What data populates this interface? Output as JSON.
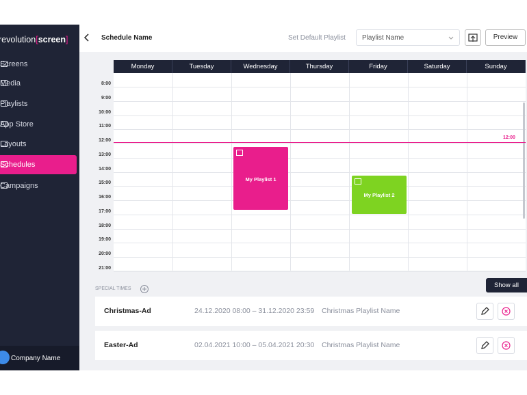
{
  "sidebar": {
    "logo": {
      "brand": "revolution",
      "accent": "screen"
    },
    "nav": [
      "Screens",
      "Media",
      "Playlists",
      "App Store",
      "Layouts",
      "Schedules",
      "Campaigns"
    ],
    "user": "Company Name"
  },
  "header": {
    "title": "Schedule Name",
    "default_playlist_label": "Set Default Playlist",
    "select": "Playlist Name",
    "preview": "Preview"
  },
  "calendar": {
    "days": [
      "Monday",
      "Tuesday",
      "Wednesday",
      "Thursday",
      "Friday",
      "Saturday",
      "Sunday"
    ],
    "hours": [
      "8:00",
      "9:00",
      "10:00",
      "11:00",
      "12:00",
      "13:00",
      "14:00",
      "15:00",
      "16:00",
      "17:00",
      "18:00",
      "19:00",
      "20:00",
      "21:00"
    ],
    "now": "12:00",
    "events": [
      {
        "label": "My Playlist 1"
      },
      {
        "label": "My Playlist 2"
      }
    ]
  },
  "special_times": {
    "title": "SPECIAL TIMES",
    "show_all": "Show all",
    "rows": [
      {
        "name": "Christmas-Ad",
        "range": "24.12.2020 08:00 – 31.12.2020 23:59",
        "playlist": "Christmas Playlist Name"
      },
      {
        "name": "Easter-Ad",
        "range": "02.04.2021 10:00 – 05.04.2021 20:30",
        "playlist": "Christmas Playlist Name"
      }
    ]
  }
}
